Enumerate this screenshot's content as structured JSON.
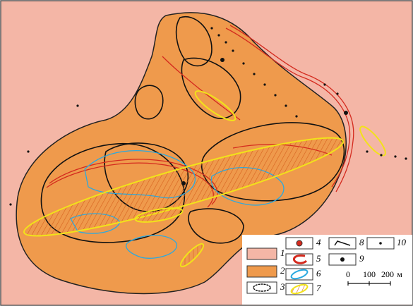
{
  "legend": {
    "items": [
      "1",
      "2",
      "3",
      "4",
      "5",
      "6",
      "7",
      "8",
      "9",
      "10"
    ]
  },
  "scale": {
    "ticks": [
      0,
      100,
      200
    ],
    "unit": "м"
  }
}
